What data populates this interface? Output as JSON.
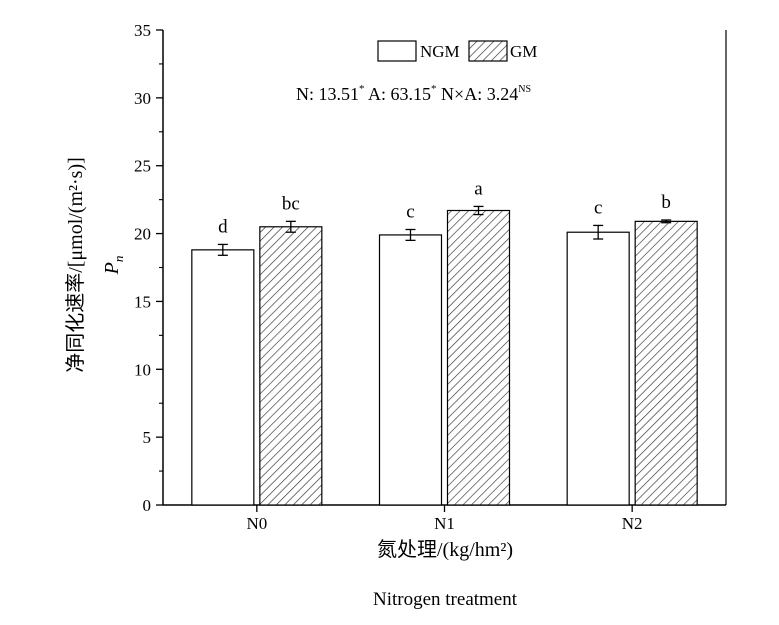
{
  "chart_data": {
    "type": "bar",
    "categories": [
      "N0",
      "N1",
      "N2"
    ],
    "series": [
      {
        "name": "NGM",
        "values": [
          18.8,
          19.9,
          20.1
        ],
        "errors": [
          0.4,
          0.4,
          0.5
        ],
        "letters": [
          "d",
          "c",
          "c"
        ],
        "fill": "#ffffff",
        "pattern": "none"
      },
      {
        "name": "GM",
        "values": [
          20.5,
          21.7,
          20.9
        ],
        "errors": [
          0.4,
          0.3,
          0.1
        ],
        "letters": [
          "bc",
          "a",
          "b"
        ],
        "fill": "#ffffff",
        "pattern": "diagonal-hatch"
      }
    ],
    "ylim": [
      0,
      35
    ],
    "yticks": [
      "0",
      "5",
      "10",
      "15",
      "20",
      "25",
      "30",
      "35"
    ],
    "ylabel_cn": "净同化速率/[μmol/(m²·s)]",
    "ylabel_symbol": "P",
    "ylabel_symbol_sub": "n",
    "xlabel_cn": "氮处理/(kg/hm²)",
    "xlabel_en": "Nitrogen treatment",
    "stats": {
      "n_label": "N",
      "n_value": "13.51",
      "n_sig": "*",
      "a_label": "A",
      "a_value": "63.15",
      "a_sig": "*",
      "nxa_label": "N×A",
      "nxa_value": "3.24",
      "nxa_sig": "NS"
    },
    "legend_position": "top-center",
    "grid": false,
    "colors": {
      "axis": "#000000",
      "bar_fill": "#ffffff",
      "hatch": "#333333"
    }
  }
}
